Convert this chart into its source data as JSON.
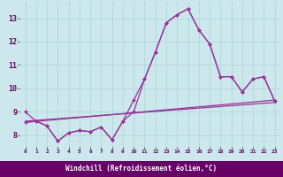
{
  "bg_color": "#cce8ec",
  "grid_color": "#aad4d8",
  "line_color": "#993399",
  "xlabel": "Windchill (Refroidissement éolien,°C)",
  "xlim": [
    -0.5,
    23.5
  ],
  "ylim": [
    7.5,
    13.7
  ],
  "yticks": [
    8,
    9,
    10,
    11,
    12,
    13
  ],
  "xticks": [
    0,
    1,
    2,
    3,
    4,
    5,
    6,
    7,
    8,
    9,
    10,
    11,
    12,
    13,
    14,
    15,
    16,
    17,
    18,
    19,
    20,
    21,
    22,
    23
  ],
  "series1_x": [
    0,
    1,
    2,
    3,
    4,
    5,
    6,
    7,
    8,
    9,
    10,
    11,
    12,
    13,
    14,
    15,
    16,
    17,
    18,
    19,
    20,
    21,
    22,
    23
  ],
  "series1_y": [
    9.0,
    8.6,
    8.4,
    7.75,
    8.1,
    8.2,
    8.15,
    8.35,
    7.8,
    8.6,
    9.0,
    10.4,
    11.55,
    12.8,
    13.15,
    13.4,
    12.5,
    11.9,
    10.5,
    10.5,
    9.85,
    10.4,
    10.5,
    9.45
  ],
  "series2_x": [
    0,
    1,
    2,
    3,
    4,
    5,
    6,
    7,
    8,
    9,
    10,
    11,
    12,
    13,
    14,
    15,
    16,
    17,
    18,
    19,
    20,
    21,
    22,
    23
  ],
  "series2_y": [
    8.55,
    8.6,
    8.4,
    7.75,
    8.1,
    8.2,
    8.15,
    8.35,
    7.8,
    8.6,
    9.5,
    10.4,
    11.55,
    12.8,
    13.15,
    13.4,
    12.5,
    11.9,
    10.5,
    10.5,
    9.85,
    10.4,
    10.5,
    9.45
  ],
  "series3_x": [
    0,
    23
  ],
  "series3_y": [
    8.55,
    9.5
  ],
  "series4_x": [
    0,
    23
  ],
  "series4_y": [
    8.6,
    9.4
  ],
  "xlabel_bg": "#660066",
  "xlabel_color": "#ffffff"
}
